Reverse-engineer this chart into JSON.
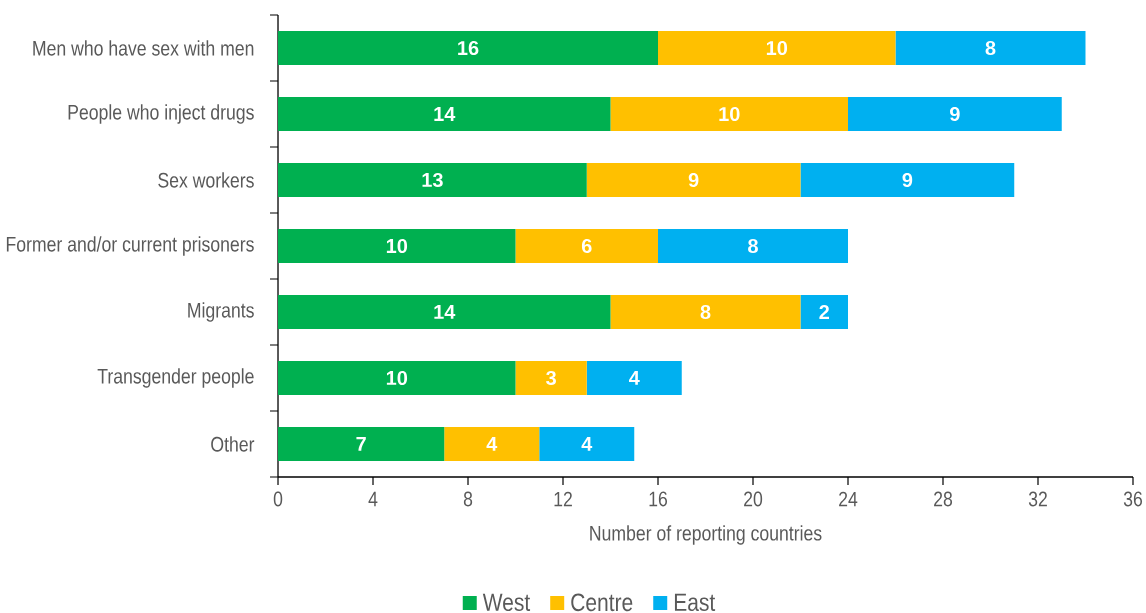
{
  "chart_data": {
    "type": "bar",
    "orientation": "horizontal",
    "stacked": true,
    "categories": [
      "Men who have sex with men",
      "People who inject drugs",
      "Sex workers",
      "Former and/or current prisoners",
      "Migrants",
      "Transgender people",
      "Other"
    ],
    "series": [
      {
        "name": "West",
        "color": "#00b050",
        "values": [
          16,
          14,
          13,
          10,
          14,
          10,
          7
        ]
      },
      {
        "name": "Centre",
        "color": "#ffc000",
        "values": [
          10,
          10,
          9,
          6,
          8,
          3,
          4
        ]
      },
      {
        "name": "East",
        "color": "#00b0f0",
        "values": [
          8,
          9,
          9,
          8,
          2,
          4,
          4
        ]
      }
    ],
    "xlabel": "Number of reporting countries",
    "xlim": [
      0,
      36
    ],
    "xticks": [
      0,
      4,
      8,
      12,
      16,
      20,
      24,
      28,
      32,
      36
    ],
    "data_labels": true,
    "legend": "bottom"
  }
}
